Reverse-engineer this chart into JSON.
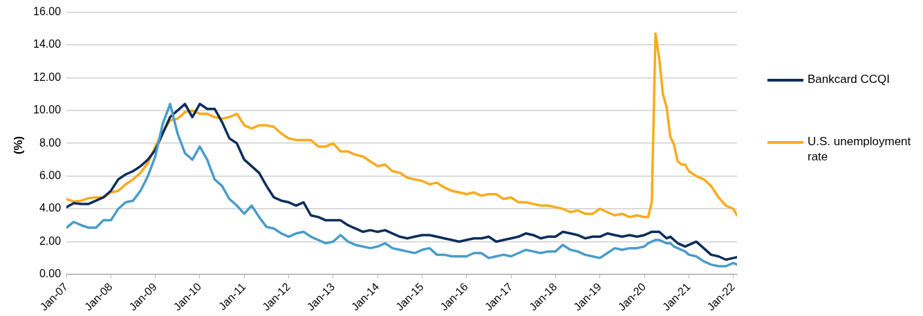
{
  "chart_data": {
    "type": "line",
    "ylabel": "(%)",
    "grid": "y",
    "legend": "right",
    "marker": "none",
    "line_style": "solid",
    "x": [
      "2007-01",
      "2007-03",
      "2007-05",
      "2007-07",
      "2007-09",
      "2007-11",
      "2008-01",
      "2008-03",
      "2008-05",
      "2008-07",
      "2008-09",
      "2008-11",
      "2009-01",
      "2009-03",
      "2009-05",
      "2009-07",
      "2009-09",
      "2009-11",
      "2010-01",
      "2010-03",
      "2010-05",
      "2010-07",
      "2010-09",
      "2010-11",
      "2011-01",
      "2011-03",
      "2011-05",
      "2011-07",
      "2011-09",
      "2011-11",
      "2012-01",
      "2012-03",
      "2012-05",
      "2012-07",
      "2012-09",
      "2012-11",
      "2013-01",
      "2013-03",
      "2013-05",
      "2013-07",
      "2013-09",
      "2013-11",
      "2014-01",
      "2014-03",
      "2014-05",
      "2014-07",
      "2014-09",
      "2014-11",
      "2015-01",
      "2015-03",
      "2015-05",
      "2015-07",
      "2015-09",
      "2015-11",
      "2016-01",
      "2016-03",
      "2016-05",
      "2016-07",
      "2016-09",
      "2016-11",
      "2017-01",
      "2017-03",
      "2017-05",
      "2017-07",
      "2017-09",
      "2017-11",
      "2018-01",
      "2018-03",
      "2018-05",
      "2018-07",
      "2018-09",
      "2018-11",
      "2019-01",
      "2019-03",
      "2019-05",
      "2019-07",
      "2019-09",
      "2019-11",
      "2020-01",
      "2020-02",
      "2020-03",
      "2020-04",
      "2020-05",
      "2020-06",
      "2020-07",
      "2020-08",
      "2020-09",
      "2020-10",
      "2020-11",
      "2020-12",
      "2021-01",
      "2021-03",
      "2021-05",
      "2021-07",
      "2021-09",
      "2021-11",
      "2022-01",
      "2022-02"
    ],
    "series": [
      {
        "color": "#4a9cc9",
        "values": [
          2.85,
          3.2,
          3.0,
          2.85,
          2.85,
          3.3,
          3.3,
          4.0,
          4.4,
          4.5,
          5.1,
          6.0,
          7.2,
          9.2,
          10.4,
          8.6,
          7.4,
          7.0,
          7.8,
          7.0,
          5.8,
          5.4,
          4.6,
          4.2,
          3.7,
          4.2,
          3.5,
          2.9,
          2.8,
          2.5,
          2.3,
          2.5,
          2.6,
          2.3,
          2.1,
          1.9,
          2.0,
          2.4,
          2.0,
          1.8,
          1.7,
          1.6,
          1.7,
          1.9,
          1.6,
          1.5,
          1.4,
          1.3,
          1.5,
          1.6,
          1.2,
          1.2,
          1.1,
          1.1,
          1.1,
          1.3,
          1.3,
          1.0,
          1.1,
          1.2,
          1.1,
          1.3,
          1.5,
          1.4,
          1.3,
          1.4,
          1.4,
          1.8,
          1.5,
          1.4,
          1.2,
          1.1,
          1.0,
          1.3,
          1.6,
          1.5,
          1.6,
          1.6,
          1.7,
          1.9,
          2.0,
          2.1,
          2.1,
          2.0,
          1.9,
          1.9,
          1.7,
          1.6,
          1.5,
          1.4,
          1.2,
          1.1,
          0.8,
          0.6,
          0.5,
          0.5,
          0.7,
          0.6
        ]
      },
      {
        "name": "Bankcard CCQI",
        "color": "#0b2d5b",
        "values": [
          4.1,
          4.35,
          4.3,
          4.3,
          4.5,
          4.7,
          5.1,
          5.8,
          6.1,
          6.3,
          6.6,
          7.0,
          7.6,
          8.6,
          9.6,
          10.0,
          10.4,
          9.6,
          10.4,
          10.1,
          10.1,
          9.3,
          8.3,
          8.0,
          7.0,
          6.6,
          6.2,
          5.4,
          4.7,
          4.5,
          4.4,
          4.2,
          4.4,
          3.6,
          3.5,
          3.3,
          3.3,
          3.3,
          3.0,
          2.8,
          2.6,
          2.7,
          2.6,
          2.7,
          2.5,
          2.3,
          2.2,
          2.3,
          2.4,
          2.4,
          2.3,
          2.2,
          2.1,
          2.0,
          2.1,
          2.2,
          2.2,
          2.3,
          2.0,
          2.1,
          2.2,
          2.3,
          2.5,
          2.4,
          2.2,
          2.3,
          2.3,
          2.6,
          2.5,
          2.4,
          2.2,
          2.3,
          2.3,
          2.5,
          2.4,
          2.3,
          2.4,
          2.3,
          2.4,
          2.5,
          2.6,
          2.6,
          2.6,
          2.4,
          2.2,
          2.3,
          2.1,
          1.9,
          1.8,
          1.7,
          1.8,
          2.0,
          1.6,
          1.2,
          1.1,
          0.9,
          1.0,
          1.05
        ]
      },
      {
        "name": "U.S. unemployment rate",
        "color": "#fbaa1c",
        "values": [
          4.6,
          4.45,
          4.5,
          4.65,
          4.7,
          4.7,
          5.0,
          5.1,
          5.5,
          5.8,
          6.2,
          6.8,
          7.8,
          8.7,
          9.4,
          9.5,
          9.9,
          10.0,
          9.8,
          9.8,
          9.6,
          9.5,
          9.6,
          9.8,
          9.1,
          8.9,
          9.1,
          9.1,
          9.0,
          8.6,
          8.3,
          8.2,
          8.2,
          8.2,
          7.8,
          7.8,
          8.0,
          7.5,
          7.5,
          7.3,
          7.2,
          6.9,
          6.6,
          6.7,
          6.3,
          6.2,
          5.9,
          5.8,
          5.7,
          5.5,
          5.6,
          5.3,
          5.1,
          5.0,
          4.9,
          5.0,
          4.8,
          4.9,
          4.9,
          4.6,
          4.7,
          4.4,
          4.4,
          4.3,
          4.2,
          4.2,
          4.1,
          4.0,
          3.8,
          3.9,
          3.7,
          3.7,
          4.0,
          3.8,
          3.6,
          3.7,
          3.5,
          3.6,
          3.5,
          3.5,
          4.4,
          14.7,
          13.2,
          11.0,
          10.2,
          8.4,
          7.9,
          6.9,
          6.7,
          6.7,
          6.3,
          6.0,
          5.8,
          5.4,
          4.7,
          4.2,
          4.0,
          3.6
        ]
      }
    ],
    "xlim": [
      "2007-01",
      "2022-02"
    ],
    "xticks": [
      {
        "value": "2007-01",
        "label": "Jan-07"
      },
      {
        "value": "2008-01",
        "label": "Jan-08"
      },
      {
        "value": "2009-01",
        "label": "Jan-09"
      },
      {
        "value": "2010-01",
        "label": "Jan-10"
      },
      {
        "value": "2011-01",
        "label": "Jan-11"
      },
      {
        "value": "2012-01",
        "label": "Jan-12"
      },
      {
        "value": "2013-01",
        "label": "Jan-13"
      },
      {
        "value": "2014-01",
        "label": "Jan-14"
      },
      {
        "value": "2015-01",
        "label": "Jan-15"
      },
      {
        "value": "2016-01",
        "label": "Jan-16"
      },
      {
        "value": "2017-01",
        "label": "Jan-17"
      },
      {
        "value": "2018-01",
        "label": "Jan-18"
      },
      {
        "value": "2019-01",
        "label": "Jan-19"
      },
      {
        "value": "2020-01",
        "label": "Jan-20"
      },
      {
        "value": "2021-01",
        "label": "Jan-21"
      },
      {
        "value": "2022-01",
        "label": "Jan-22"
      }
    ],
    "ylim": [
      0,
      16
    ],
    "yticks": [
      {
        "value": 0,
        "label": "0.00"
      },
      {
        "value": 2,
        "label": "2.00"
      },
      {
        "value": 4,
        "label": "4.00"
      },
      {
        "value": 6,
        "label": "6.00"
      },
      {
        "value": 8,
        "label": "8.00"
      },
      {
        "value": 10,
        "label": "10.00"
      },
      {
        "value": 12,
        "label": "12.00"
      },
      {
        "value": 14,
        "label": "14.00"
      },
      {
        "value": 16,
        "label": "16.00"
      }
    ]
  }
}
